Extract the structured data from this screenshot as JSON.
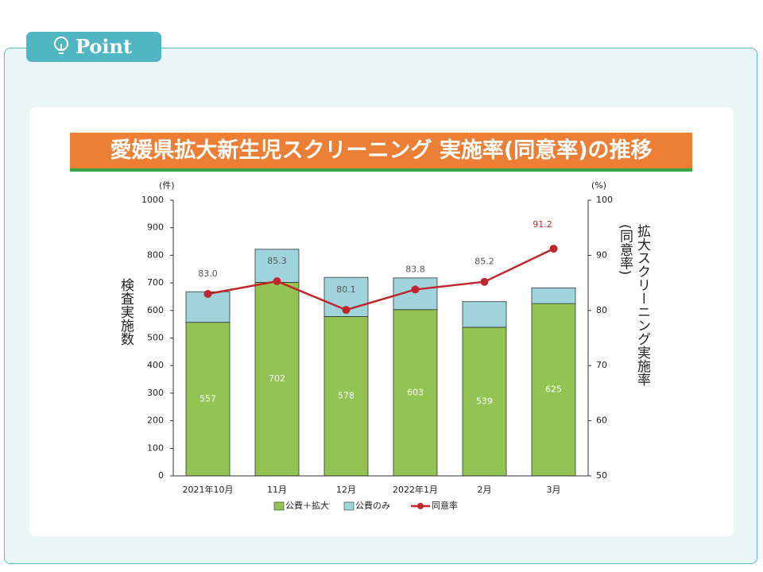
{
  "header": "Point",
  "chart_data": {
    "type": "bar",
    "stacked": true,
    "title": "愛媛県拡大新生児スクリーニング 実施率(同意率)の推移",
    "y_unit": "(件)",
    "y2_unit": "(%)",
    "y_label": "検査実施数",
    "y2_label": "拡大スクリーニング実施率(同意率)",
    "categories": [
      "2021年10月",
      "11月",
      "12月",
      "2022年1月",
      "2月",
      "3月"
    ],
    "series": [
      {
        "name": "公費＋拡大",
        "type": "bar",
        "color": "#92c353",
        "values": [
          557,
          702,
          578,
          603,
          539,
          625
        ]
      },
      {
        "name": "公費のみ",
        "type": "bar",
        "color": "#9fd4dc",
        "values": [
          111,
          120,
          142,
          115,
          93,
          57
        ]
      },
      {
        "name": "同意率",
        "type": "line",
        "axis": "y2",
        "color": "#c0262b",
        "values": [
          83.0,
          85.3,
          80.1,
          83.8,
          85.2,
          91.2
        ],
        "value_labels": [
          "83.0",
          "85.3",
          "80.1",
          "83.8",
          "85.2",
          "91.2"
        ]
      }
    ],
    "ylim": [
      0,
      1000
    ],
    "yticks": [
      0,
      100,
      200,
      300,
      400,
      500,
      600,
      700,
      800,
      900,
      1000
    ],
    "y2lim": [
      50,
      100
    ],
    "y2ticks": [
      50,
      60,
      70,
      80,
      90,
      100
    ],
    "legend": "bottom",
    "grid": false
  }
}
